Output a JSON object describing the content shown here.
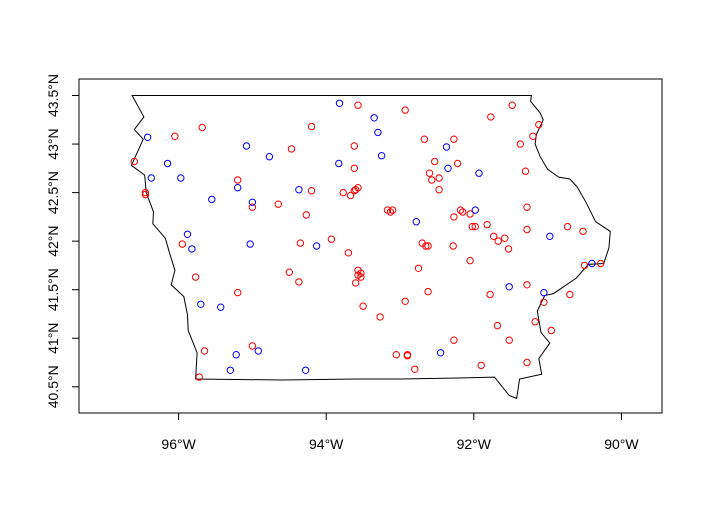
{
  "chart_data": {
    "type": "scatter",
    "title": "",
    "xlabel": "",
    "ylabel": "",
    "xlim": [
      -97.35,
      -89.45
    ],
    "ylim": [
      40.23,
      43.67
    ],
    "x_ticks": [
      {
        "value": -96,
        "label": "96°W"
      },
      {
        "value": -94,
        "label": "94°W"
      },
      {
        "value": -92,
        "label": "92°W"
      },
      {
        "value": -90,
        "label": "90°W"
      }
    ],
    "y_ticks": [
      {
        "value": 40.5,
        "label": "40.5°N"
      },
      {
        "value": 41.0,
        "label": "41°N"
      },
      {
        "value": 41.5,
        "label": "41.5°N"
      },
      {
        "value": 42.0,
        "label": "42°N"
      },
      {
        "value": 42.5,
        "label": "42.5°N"
      },
      {
        "value": 43.0,
        "label": "43°N"
      },
      {
        "value": 43.5,
        "label": "43.5°N"
      }
    ],
    "boundary": [
      [
        -96.63,
        43.5
      ],
      [
        -91.22,
        43.5
      ],
      [
        -91.23,
        43.44
      ],
      [
        -91.1,
        43.32
      ],
      [
        -91.06,
        43.25
      ],
      [
        -91.15,
        43.1
      ],
      [
        -91.17,
        43.0
      ],
      [
        -91.1,
        42.87
      ],
      [
        -91.0,
        42.74
      ],
      [
        -90.85,
        42.66
      ],
      [
        -90.7,
        42.64
      ],
      [
        -90.6,
        42.56
      ],
      [
        -90.48,
        42.4
      ],
      [
        -90.35,
        42.2
      ],
      [
        -90.15,
        42.1
      ],
      [
        -90.17,
        41.93
      ],
      [
        -90.24,
        41.77
      ],
      [
        -90.45,
        41.76
      ],
      [
        -90.61,
        41.62
      ],
      [
        -90.92,
        41.46
      ],
      [
        -91.04,
        41.44
      ],
      [
        -91.14,
        41.28
      ],
      [
        -91.09,
        41.06
      ],
      [
        -90.97,
        40.95
      ],
      [
        -91.12,
        40.79
      ],
      [
        -91.08,
        40.63
      ],
      [
        -91.38,
        40.58
      ],
      [
        -91.42,
        40.38
      ],
      [
        -91.52,
        40.41
      ],
      [
        -91.72,
        40.6
      ],
      [
        -92.2,
        40.59
      ],
      [
        -93.0,
        40.58
      ],
      [
        -93.6,
        40.58
      ],
      [
        -94.6,
        40.57
      ],
      [
        -95.77,
        40.58
      ],
      [
        -95.75,
        40.85
      ],
      [
        -95.87,
        41.08
      ],
      [
        -95.88,
        41.24
      ],
      [
        -95.93,
        41.43
      ],
      [
        -96.1,
        41.55
      ],
      [
        -96.05,
        41.7
      ],
      [
        -96.12,
        41.87
      ],
      [
        -96.18,
        42.03
      ],
      [
        -96.35,
        42.18
      ],
      [
        -96.34,
        42.3
      ],
      [
        -96.44,
        42.5
      ],
      [
        -96.46,
        42.68
      ],
      [
        -96.64,
        42.78
      ],
      [
        -96.55,
        42.93
      ],
      [
        -96.48,
        43.05
      ],
      [
        -96.6,
        43.15
      ],
      [
        -96.47,
        43.28
      ],
      [
        -96.63,
        43.5
      ]
    ],
    "series": [
      {
        "color": "#ff0000",
        "points": [
          [
            -96.6,
            42.82
          ],
          [
            -96.45,
            42.5
          ],
          [
            -96.45,
            42.48
          ],
          [
            -96.05,
            43.08
          ],
          [
            -95.68,
            43.17
          ],
          [
            -95.95,
            41.97
          ],
          [
            -95.77,
            41.63
          ],
          [
            -95.65,
            40.87
          ],
          [
            -95.72,
            40.6
          ],
          [
            -95.2,
            41.47
          ],
          [
            -95.2,
            42.63
          ],
          [
            -95.0,
            42.35
          ],
          [
            -95.0,
            40.92
          ],
          [
            -94.65,
            42.38
          ],
          [
            -94.47,
            42.95
          ],
          [
            -94.2,
            43.18
          ],
          [
            -94.2,
            42.52
          ],
          [
            -94.27,
            42.27
          ],
          [
            -94.35,
            41.98
          ],
          [
            -94.5,
            41.68
          ],
          [
            -94.37,
            41.58
          ],
          [
            -93.93,
            42.02
          ],
          [
            -93.77,
            42.5
          ],
          [
            -93.62,
            42.98
          ],
          [
            -93.57,
            43.4
          ],
          [
            -93.62,
            42.75
          ],
          [
            -93.67,
            42.47
          ],
          [
            -93.62,
            42.52
          ],
          [
            -93.6,
            42.53
          ],
          [
            -93.57,
            42.55
          ],
          [
            -93.7,
            41.88
          ],
          [
            -93.57,
            41.7
          ],
          [
            -93.57,
            41.65
          ],
          [
            -93.53,
            41.67
          ],
          [
            -93.53,
            41.63
          ],
          [
            -93.6,
            41.57
          ],
          [
            -93.5,
            41.33
          ],
          [
            -93.27,
            41.22
          ],
          [
            -93.17,
            42.32
          ],
          [
            -93.13,
            42.3
          ],
          [
            -93.1,
            42.32
          ],
          [
            -93.05,
            40.83
          ],
          [
            -92.93,
            43.35
          ],
          [
            -92.93,
            41.38
          ],
          [
            -92.9,
            40.82
          ],
          [
            -92.9,
            40.83
          ],
          [
            -92.8,
            40.68
          ],
          [
            -92.75,
            41.72
          ],
          [
            -92.7,
            41.98
          ],
          [
            -92.67,
            43.05
          ],
          [
            -92.65,
            41.95
          ],
          [
            -92.6,
            42.7
          ],
          [
            -92.62,
            41.95
          ],
          [
            -92.62,
            41.48
          ],
          [
            -92.57,
            42.63
          ],
          [
            -92.53,
            42.82
          ],
          [
            -92.47,
            42.65
          ],
          [
            -92.47,
            42.53
          ],
          [
            -92.27,
            43.05
          ],
          [
            -92.28,
            41.95
          ],
          [
            -92.22,
            42.8
          ],
          [
            -92.27,
            42.25
          ],
          [
            -92.18,
            42.32
          ],
          [
            -92.15,
            42.3
          ],
          [
            -92.27,
            40.98
          ],
          [
            -92.05,
            41.8
          ],
          [
            -92.05,
            42.28
          ],
          [
            -92.02,
            42.15
          ],
          [
            -91.98,
            42.15
          ],
          [
            -91.9,
            40.72
          ],
          [
            -91.77,
            43.28
          ],
          [
            -91.78,
            41.45
          ],
          [
            -91.82,
            42.17
          ],
          [
            -91.73,
            42.05
          ],
          [
            -91.67,
            42.0
          ],
          [
            -91.68,
            41.13
          ],
          [
            -91.58,
            42.03
          ],
          [
            -91.53,
            41.92
          ],
          [
            -91.52,
            40.98
          ],
          [
            -91.48,
            43.4
          ],
          [
            -91.37,
            43.0
          ],
          [
            -91.28,
            42.12
          ],
          [
            -91.28,
            42.35
          ],
          [
            -91.3,
            42.72
          ],
          [
            -91.28,
            41.55
          ],
          [
            -91.2,
            43.08
          ],
          [
            -91.12,
            43.2
          ],
          [
            -91.17,
            41.17
          ],
          [
            -91.05,
            41.37
          ],
          [
            -90.95,
            41.08
          ],
          [
            -91.28,
            40.75
          ],
          [
            -90.73,
            42.15
          ],
          [
            -90.7,
            41.45
          ],
          [
            -90.52,
            42.1
          ],
          [
            -90.5,
            41.75
          ],
          [
            -90.28,
            41.77
          ]
        ]
      },
      {
        "color": "#0000ff",
        "points": [
          [
            -96.42,
            43.07
          ],
          [
            -96.37,
            42.65
          ],
          [
            -96.15,
            42.8
          ],
          [
            -95.97,
            42.65
          ],
          [
            -95.88,
            42.07
          ],
          [
            -95.82,
            41.92
          ],
          [
            -95.7,
            41.35
          ],
          [
            -95.55,
            42.43
          ],
          [
            -95.43,
            41.32
          ],
          [
            -95.3,
            40.67
          ],
          [
            -95.22,
            40.83
          ],
          [
            -95.2,
            42.55
          ],
          [
            -95.08,
            42.98
          ],
          [
            -95.03,
            41.97
          ],
          [
            -95.0,
            42.4
          ],
          [
            -94.92,
            40.87
          ],
          [
            -94.77,
            42.87
          ],
          [
            -94.37,
            42.53
          ],
          [
            -94.28,
            40.67
          ],
          [
            -94.13,
            41.95
          ],
          [
            -93.82,
            43.42
          ],
          [
            -93.83,
            42.8
          ],
          [
            -93.35,
            43.27
          ],
          [
            -93.3,
            43.12
          ],
          [
            -93.25,
            42.88
          ],
          [
            -92.78,
            42.2
          ],
          [
            -92.37,
            42.97
          ],
          [
            -92.35,
            42.75
          ],
          [
            -92.45,
            40.85
          ],
          [
            -91.98,
            42.32
          ],
          [
            -91.93,
            42.7
          ],
          [
            -91.52,
            41.53
          ],
          [
            -90.97,
            42.05
          ],
          [
            -91.05,
            41.47
          ],
          [
            -90.4,
            41.77
          ]
        ]
      }
    ]
  }
}
